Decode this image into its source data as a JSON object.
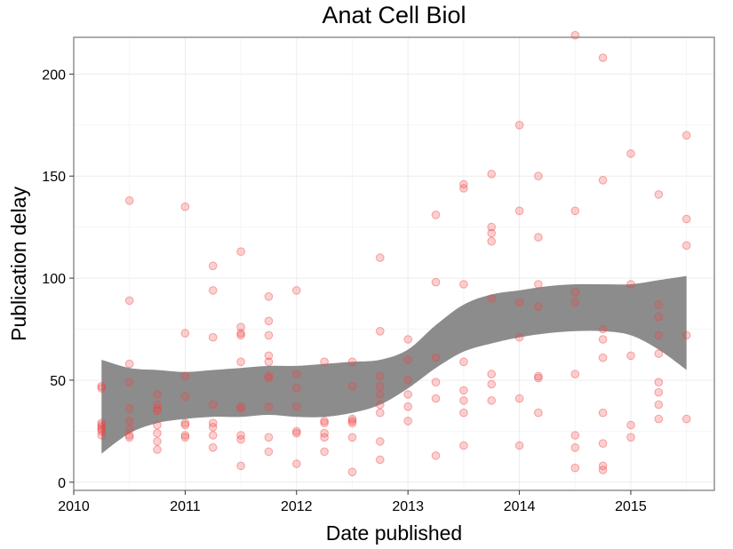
{
  "chart_data": {
    "type": "scatter",
    "title": "Anat Cell Biol",
    "xlabel": "Date published",
    "ylabel": "Publication delay",
    "xlim": [
      2010.0,
      2015.75
    ],
    "ylim": [
      -4,
      218
    ],
    "x_ticks": [
      {
        "value": 2010,
        "label": "2010"
      },
      {
        "value": 2011,
        "label": "2011"
      },
      {
        "value": 2012,
        "label": "2012"
      },
      {
        "value": 2013,
        "label": "2013"
      },
      {
        "value": 2014,
        "label": "2014"
      },
      {
        "value": 2015,
        "label": "2015"
      }
    ],
    "y_ticks": [
      {
        "value": 0,
        "label": "0"
      },
      {
        "value": 50,
        "label": "50"
      },
      {
        "value": 100,
        "label": "100"
      },
      {
        "value": 150,
        "label": "150"
      },
      {
        "value": 200,
        "label": "200"
      }
    ],
    "grid": true,
    "legend": "none",
    "point_color": "#ef4444",
    "band_color": "#8c8c8c",
    "points": [
      [
        2010.25,
        47
      ],
      [
        2010.25,
        46
      ],
      [
        2010.25,
        29
      ],
      [
        2010.25,
        28
      ],
      [
        2010.25,
        27
      ],
      [
        2010.25,
        26
      ],
      [
        2010.25,
        25
      ],
      [
        2010.25,
        23
      ],
      [
        2010.5,
        138
      ],
      [
        2010.5,
        89
      ],
      [
        2010.5,
        58
      ],
      [
        2010.5,
        49
      ],
      [
        2010.5,
        36
      ],
      [
        2010.5,
        30
      ],
      [
        2010.5,
        26
      ],
      [
        2010.5,
        23
      ],
      [
        2010.5,
        22
      ],
      [
        2010.75,
        43
      ],
      [
        2010.75,
        38
      ],
      [
        2010.75,
        36
      ],
      [
        2010.75,
        35
      ],
      [
        2010.75,
        28
      ],
      [
        2010.75,
        24
      ],
      [
        2010.75,
        20
      ],
      [
        2010.75,
        16
      ],
      [
        2011.0,
        135
      ],
      [
        2011.0,
        73
      ],
      [
        2011.0,
        52
      ],
      [
        2011.0,
        42
      ],
      [
        2011.0,
        29
      ],
      [
        2011.0,
        28
      ],
      [
        2011.0,
        23
      ],
      [
        2011.0,
        22
      ],
      [
        2011.25,
        106
      ],
      [
        2011.25,
        94
      ],
      [
        2011.25,
        71
      ],
      [
        2011.25,
        38
      ],
      [
        2011.25,
        29
      ],
      [
        2011.25,
        27
      ],
      [
        2011.25,
        23
      ],
      [
        2011.25,
        17
      ],
      [
        2011.5,
        113
      ],
      [
        2011.5,
        76
      ],
      [
        2011.5,
        73
      ],
      [
        2011.5,
        72
      ],
      [
        2011.5,
        59
      ],
      [
        2011.5,
        37
      ],
      [
        2011.5,
        36
      ],
      [
        2011.5,
        23
      ],
      [
        2011.5,
        21
      ],
      [
        2011.5,
        8
      ],
      [
        2011.75,
        91
      ],
      [
        2011.75,
        79
      ],
      [
        2011.75,
        72
      ],
      [
        2011.75,
        62
      ],
      [
        2011.75,
        59
      ],
      [
        2011.75,
        52
      ],
      [
        2011.75,
        51
      ],
      [
        2011.75,
        37
      ],
      [
        2011.75,
        22
      ],
      [
        2011.75,
        15
      ],
      [
        2012.0,
        94
      ],
      [
        2012.0,
        53
      ],
      [
        2012.0,
        46
      ],
      [
        2012.0,
        37
      ],
      [
        2012.0,
        25
      ],
      [
        2012.0,
        24
      ],
      [
        2012.0,
        9
      ],
      [
        2012.25,
        59
      ],
      [
        2012.25,
        30
      ],
      [
        2012.25,
        29
      ],
      [
        2012.25,
        24
      ],
      [
        2012.25,
        22
      ],
      [
        2012.25,
        15
      ],
      [
        2012.5,
        59
      ],
      [
        2012.5,
        47
      ],
      [
        2012.5,
        31
      ],
      [
        2012.5,
        30
      ],
      [
        2012.5,
        29
      ],
      [
        2012.5,
        22
      ],
      [
        2012.5,
        5
      ],
      [
        2012.75,
        110
      ],
      [
        2012.75,
        74
      ],
      [
        2012.75,
        52
      ],
      [
        2012.75,
        47
      ],
      [
        2012.75,
        43
      ],
      [
        2012.75,
        38
      ],
      [
        2012.75,
        34
      ],
      [
        2012.75,
        20
      ],
      [
        2012.75,
        11
      ],
      [
        2013.0,
        70
      ],
      [
        2013.0,
        60
      ],
      [
        2013.0,
        50
      ],
      [
        2013.0,
        43
      ],
      [
        2013.0,
        37
      ],
      [
        2013.0,
        30
      ],
      [
        2013.25,
        131
      ],
      [
        2013.25,
        98
      ],
      [
        2013.25,
        61
      ],
      [
        2013.25,
        49
      ],
      [
        2013.25,
        41
      ],
      [
        2013.25,
        13
      ],
      [
        2013.5,
        146
      ],
      [
        2013.5,
        144
      ],
      [
        2013.5,
        97
      ],
      [
        2013.5,
        59
      ],
      [
        2013.5,
        45
      ],
      [
        2013.5,
        40
      ],
      [
        2013.5,
        34
      ],
      [
        2013.5,
        18
      ],
      [
        2013.75,
        151
      ],
      [
        2013.75,
        125
      ],
      [
        2013.75,
        122
      ],
      [
        2013.75,
        118
      ],
      [
        2013.75,
        90
      ],
      [
        2013.75,
        53
      ],
      [
        2013.75,
        48
      ],
      [
        2013.75,
        40
      ],
      [
        2014.0,
        175
      ],
      [
        2014.0,
        133
      ],
      [
        2014.0,
        88
      ],
      [
        2014.0,
        71
      ],
      [
        2014.0,
        41
      ],
      [
        2014.0,
        18
      ],
      [
        2014.17,
        150
      ],
      [
        2014.17,
        120
      ],
      [
        2014.17,
        97
      ],
      [
        2014.17,
        86
      ],
      [
        2014.17,
        52
      ],
      [
        2014.17,
        51
      ],
      [
        2014.17,
        34
      ],
      [
        2014.5,
        219
      ],
      [
        2014.5,
        133
      ],
      [
        2014.5,
        93
      ],
      [
        2014.5,
        88
      ],
      [
        2014.5,
        53
      ],
      [
        2014.5,
        23
      ],
      [
        2014.5,
        17
      ],
      [
        2014.5,
        7
      ],
      [
        2014.75,
        208
      ],
      [
        2014.75,
        148
      ],
      [
        2014.75,
        75
      ],
      [
        2014.75,
        70
      ],
      [
        2014.75,
        61
      ],
      [
        2014.75,
        34
      ],
      [
        2014.75,
        19
      ],
      [
        2014.75,
        8
      ],
      [
        2014.75,
        6
      ],
      [
        2015.0,
        161
      ],
      [
        2015.0,
        97
      ],
      [
        2015.0,
        62
      ],
      [
        2015.0,
        28
      ],
      [
        2015.0,
        22
      ],
      [
        2015.25,
        141
      ],
      [
        2015.25,
        87
      ],
      [
        2015.25,
        81
      ],
      [
        2015.25,
        72
      ],
      [
        2015.25,
        63
      ],
      [
        2015.25,
        49
      ],
      [
        2015.25,
        44
      ],
      [
        2015.25,
        38
      ],
      [
        2015.25,
        31
      ],
      [
        2015.5,
        170
      ],
      [
        2015.5,
        129
      ],
      [
        2015.5,
        116
      ],
      [
        2015.5,
        72
      ],
      [
        2015.5,
        31
      ]
    ],
    "smooth_band": [
      {
        "x": 2010.25,
        "lower": 14,
        "upper": 60
      },
      {
        "x": 2010.5,
        "lower": 24,
        "upper": 56
      },
      {
        "x": 2010.75,
        "lower": 29,
        "upper": 55
      },
      {
        "x": 2011.0,
        "lower": 31,
        "upper": 54
      },
      {
        "x": 2011.25,
        "lower": 32,
        "upper": 55
      },
      {
        "x": 2011.5,
        "lower": 32,
        "upper": 56
      },
      {
        "x": 2011.75,
        "lower": 33,
        "upper": 57
      },
      {
        "x": 2012.0,
        "lower": 32,
        "upper": 57
      },
      {
        "x": 2012.25,
        "lower": 32,
        "upper": 58
      },
      {
        "x": 2012.5,
        "lower": 34,
        "upper": 59
      },
      {
        "x": 2012.75,
        "lower": 38,
        "upper": 60
      },
      {
        "x": 2013.0,
        "lower": 46,
        "upper": 65
      },
      {
        "x": 2013.25,
        "lower": 56,
        "upper": 77
      },
      {
        "x": 2013.5,
        "lower": 64,
        "upper": 87
      },
      {
        "x": 2013.75,
        "lower": 68,
        "upper": 92
      },
      {
        "x": 2014.0,
        "lower": 71,
        "upper": 94
      },
      {
        "x": 2014.25,
        "lower": 73,
        "upper": 96
      },
      {
        "x": 2014.5,
        "lower": 74,
        "upper": 97
      },
      {
        "x": 2014.75,
        "lower": 74,
        "upper": 97
      },
      {
        "x": 2015.0,
        "lower": 72,
        "upper": 97
      },
      {
        "x": 2015.25,
        "lower": 65,
        "upper": 99
      },
      {
        "x": 2015.5,
        "lower": 55,
        "upper": 101
      }
    ]
  }
}
